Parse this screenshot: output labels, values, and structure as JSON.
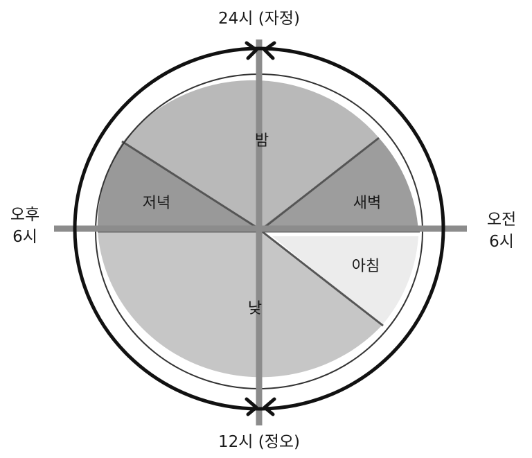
{
  "labels": {
    "top": "24시 (자정)",
    "bottom": "12시 (정오)",
    "left_line1": "오후",
    "left_line2": "6시",
    "right_line1": "오전",
    "right_line2": "6시"
  },
  "segments": [
    {
      "key": "night",
      "label": "밤",
      "color": "#b9b9b9"
    },
    {
      "key": "dawn",
      "label": "새벽",
      "color": "#9d9d9d"
    },
    {
      "key": "morning",
      "label": "아침",
      "color": "#ececec"
    },
    {
      "key": "day",
      "label": "낮",
      "color": "#c6c6c6"
    },
    {
      "key": "evening",
      "label": "저녁",
      "color": "#999999"
    }
  ],
  "colors": {
    "axis": "#8c8c8c",
    "ring": "#111111",
    "divider": "#555555"
  }
}
